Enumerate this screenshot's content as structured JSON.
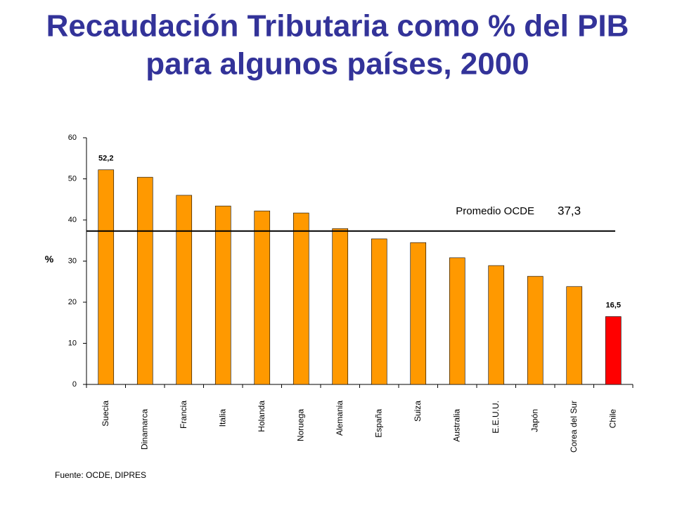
{
  "chart_data": {
    "type": "bar",
    "title_lines": [
      "Recaudación Tributaria como % del PIB",
      "para algunos países, 2000"
    ],
    "y_label": "%",
    "source": "Fuente: OCDE, DIPRES",
    "categories": [
      "Suecia",
      "Dinamarca",
      "Francia",
      "Italia",
      "Holanda",
      "Noruega",
      "Alemania",
      "España",
      "Suiza",
      "Australia",
      "E.E.U.U.",
      "Japón",
      "Corea del Sur",
      "Chile"
    ],
    "values": [
      52.2,
      50.4,
      46.0,
      43.4,
      42.2,
      41.7,
      37.9,
      35.4,
      34.5,
      30.8,
      28.9,
      26.3,
      23.8,
      16.5
    ],
    "value_labels": [
      "52,2",
      null,
      null,
      null,
      null,
      null,
      null,
      null,
      null,
      null,
      null,
      null,
      null,
      "16,5"
    ],
    "colors": [
      "#ff9900",
      "#ff9900",
      "#ff9900",
      "#ff9900",
      "#ff9900",
      "#ff9900",
      "#ff9900",
      "#ff9900",
      "#ff9900",
      "#ff9900",
      "#ff9900",
      "#ff9900",
      "#ff9900",
      "#ff0000"
    ],
    "ylim": [
      0,
      60
    ],
    "yticks": [
      0,
      10,
      20,
      30,
      40,
      50,
      60
    ],
    "reference": {
      "label": "Promedio OCDE",
      "value": 37.3,
      "value_label": "37,3"
    }
  }
}
